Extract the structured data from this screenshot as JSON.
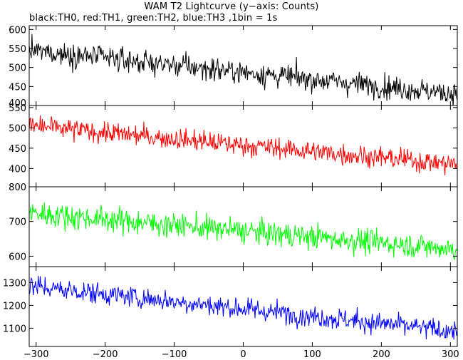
{
  "title": "WAM T2 Lightcurve (y−axis: Counts)",
  "subtitle": "black:TH0, red:TH1, green:TH2, blue:TH3 ,1bin = 1s",
  "chart_data": [
    {
      "type": "line",
      "series_color": "#000000",
      "xlim": [
        -310,
        310
      ],
      "ylim": [
        400,
        610
      ],
      "yticks": [
        400,
        450,
        500,
        550,
        600
      ],
      "grid": false,
      "trend": {
        "start": 545,
        "end": 430,
        "noise": 26,
        "min": 395,
        "max": 615
      }
    },
    {
      "type": "line",
      "series_color": "#ff0000",
      "xlim": [
        -310,
        310
      ],
      "ylim": [
        355,
        555
      ],
      "yticks": [
        400,
        450,
        500,
        550
      ],
      "grid": false,
      "trend": {
        "start": 505,
        "end": 410,
        "noise": 22,
        "min": 350,
        "max": 575
      }
    },
    {
      "type": "line",
      "series_color": "#00ff00",
      "xlim": [
        -310,
        310
      ],
      "ylim": [
        570,
        800
      ],
      "yticks": [
        600,
        700,
        800
      ],
      "grid": false,
      "trend": {
        "start": 725,
        "end": 620,
        "noise": 30,
        "min": 560,
        "max": 810
      }
    },
    {
      "type": "line",
      "series_color": "#0000ff",
      "xlim": [
        -310,
        310
      ],
      "ylim": [
        1020,
        1370
      ],
      "yticks": [
        1100,
        1200,
        1300
      ],
      "grid": false,
      "trend": {
        "start": 1285,
        "end": 1085,
        "noise": 40,
        "min": 1010,
        "max": 1380
      }
    }
  ],
  "x_axis": {
    "ticks": [
      -300,
      -200,
      -100,
      0,
      100,
      200,
      300
    ]
  }
}
